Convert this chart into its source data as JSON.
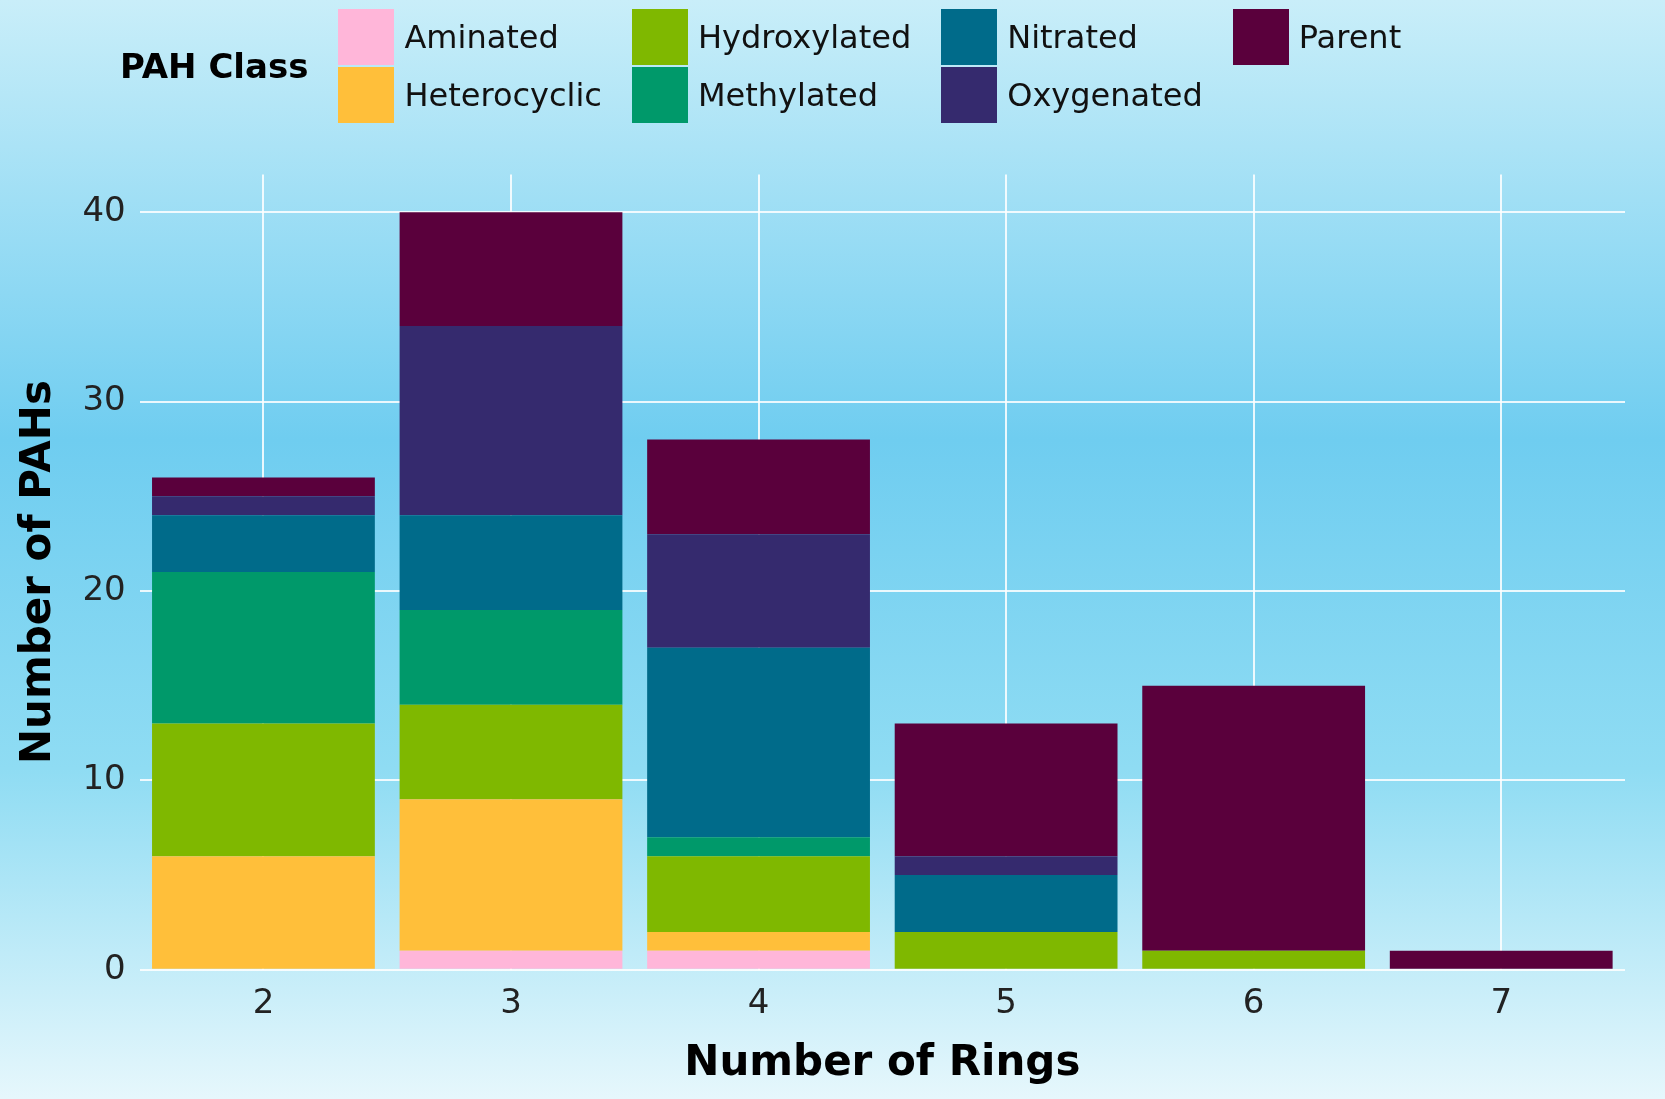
{
  "chart_data": {
    "type": "bar",
    "stacked": true,
    "xlabel": "Number of Rings",
    "ylabel": "Number of PAHs",
    "legend_title": "PAH Class",
    "legend": "top",
    "grid": true,
    "categories": [
      "2",
      "3",
      "4",
      "5",
      "6",
      "7"
    ],
    "ylim": [
      0,
      42
    ],
    "yticks": [
      0,
      10,
      20,
      30,
      40
    ],
    "series": [
      {
        "name": "Aminated",
        "color": "#ffb6d9",
        "values": [
          0,
          1,
          1,
          0,
          0,
          0
        ]
      },
      {
        "name": "Heterocyclic",
        "color": "#ffbf3a",
        "values": [
          6,
          8,
          1,
          0,
          0,
          0
        ]
      },
      {
        "name": "Hydroxylated",
        "color": "#7fb800",
        "values": [
          7,
          5,
          4,
          2,
          1,
          0
        ]
      },
      {
        "name": "Methylated",
        "color": "#00996a",
        "values": [
          8,
          5,
          1,
          0,
          0,
          0
        ]
      },
      {
        "name": "Nitrated",
        "color": "#006b8a",
        "values": [
          3,
          5,
          10,
          3,
          0,
          0
        ]
      },
      {
        "name": "Oxygenated",
        "color": "#352a6e",
        "values": [
          1,
          10,
          6,
          1,
          0,
          0
        ]
      },
      {
        "name": "Parent",
        "color": "#5a003c",
        "values": [
          1,
          6,
          5,
          7,
          14,
          1
        ]
      }
    ]
  }
}
